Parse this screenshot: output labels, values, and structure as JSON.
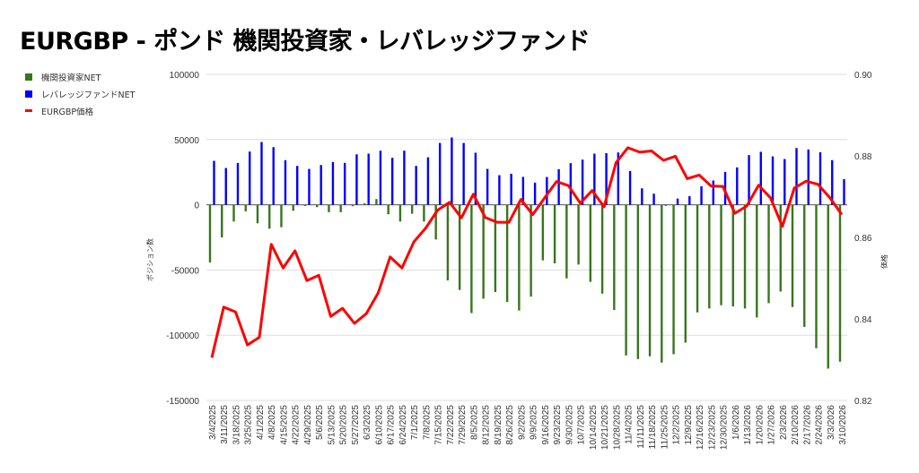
{
  "chart_data": {
    "type": "bar+line",
    "title": "EURGBP - ポンド 機関投資家・レバレッジファンド",
    "ylabel": "ポジション数",
    "y2label": "価格",
    "ylim": [
      -150000,
      100000
    ],
    "y2lim": [
      0.82,
      0.9
    ],
    "yticks": [
      "100000",
      "50000",
      "0",
      "-50000",
      "-100000",
      "-150000"
    ],
    "y2ticks": [
      "0.90",
      "0.88",
      "0.86",
      "0.84",
      "0.82"
    ],
    "legend_position": "top-left",
    "categories": [
      "3/4/2025",
      "3/11/2025",
      "3/18/2025",
      "3/25/2025",
      "4/1/2025",
      "4/8/2025",
      "4/15/2025",
      "4/22/2025",
      "4/29/2025",
      "5/6/2025",
      "5/13/2025",
      "5/20/2025",
      "5/27/2025",
      "6/3/2025",
      "6/10/2025",
      "6/17/2025",
      "6/24/2025",
      "7/1/2025",
      "7/8/2025",
      "7/15/2025",
      "7/22/2025",
      "7/29/2025",
      "8/5/2025",
      "8/12/2025",
      "8/19/2025",
      "8/26/2025",
      "9/2/2025",
      "9/9/2025",
      "9/16/2025",
      "9/23/2025",
      "9/30/2025",
      "10/7/2025",
      "10/14/2025",
      "10/21/2025",
      "10/28/2025",
      "11/4/2025",
      "11/11/2025",
      "11/18/2025",
      "11/25/2025",
      "12/2/2025",
      "12/9/2025",
      "12/16/2025",
      "12/23/2025",
      "12/30/2025",
      "1/6/2026",
      "1/13/2026",
      "1/20/2026",
      "1/27/2026",
      "2/3/2026",
      "2/10/2026",
      "2/17/2026",
      "2/24/2026",
      "3/3/2026",
      "3/10/2026"
    ],
    "series": [
      {
        "name": "機関投資家NET",
        "type": "bar",
        "color": "#38761d",
        "values": [
          -44200,
          -25000,
          -12800,
          -5000,
          -14200,
          -18300,
          -17200,
          -4600,
          -900,
          -1800,
          -5700,
          -5700,
          -1100,
          1100,
          4400,
          -7300,
          -12800,
          -6900,
          -12800,
          -26600,
          -58000,
          -65300,
          -83000,
          -72000,
          -66900,
          -74500,
          -81100,
          -70400,
          -42600,
          -44900,
          -56400,
          -45800,
          -59100,
          -68100,
          -80700,
          -115500,
          -118300,
          -116200,
          -121000,
          -114600,
          -105700,
          -82500,
          -79500,
          -77000,
          -77900,
          -79500,
          -86400,
          -75400,
          -66500,
          -78400,
          -93600,
          -110000,
          -125600,
          -120300
        ]
      },
      {
        "name": "レバレッジファンドNET",
        "type": "bar",
        "color": "#0000ff",
        "values": [
          33700,
          28200,
          32100,
          40800,
          48100,
          44200,
          34200,
          29800,
          27500,
          30500,
          32800,
          32100,
          38700,
          39200,
          41500,
          36000,
          41500,
          29800,
          36400,
          47400,
          51600,
          47400,
          39900,
          27500,
          22700,
          23800,
          21400,
          17000,
          21300,
          27300,
          31900,
          34600,
          39200,
          39600,
          40100,
          25900,
          12600,
          8500,
          -700,
          4800,
          6600,
          14200,
          18600,
          25200,
          28700,
          38100,
          40600,
          37100,
          35100,
          43500,
          42400,
          40300,
          34200,
          19700
        ]
      },
      {
        "name": "EURGBP価格",
        "type": "line",
        "axis": "right",
        "color": "#ff0000",
        "values": [
          0.8305,
          0.8429,
          0.8417,
          0.8336,
          0.8355,
          0.8583,
          0.8525,
          0.8567,
          0.8494,
          0.8507,
          0.8406,
          0.8426,
          0.8389,
          0.8413,
          0.8464,
          0.8552,
          0.8525,
          0.8589,
          0.8623,
          0.8667,
          0.8686,
          0.8648,
          0.8706,
          0.8649,
          0.8637,
          0.8637,
          0.8693,
          0.8656,
          0.8697,
          0.8737,
          0.8727,
          0.8684,
          0.8715,
          0.8675,
          0.8783,
          0.882,
          0.8809,
          0.8812,
          0.8789,
          0.8799,
          0.8744,
          0.8753,
          0.8726,
          0.8725,
          0.8659,
          0.8677,
          0.8728,
          0.8697,
          0.8627,
          0.8721,
          0.8738,
          0.873,
          0.8697,
          0.8656
        ]
      }
    ]
  }
}
